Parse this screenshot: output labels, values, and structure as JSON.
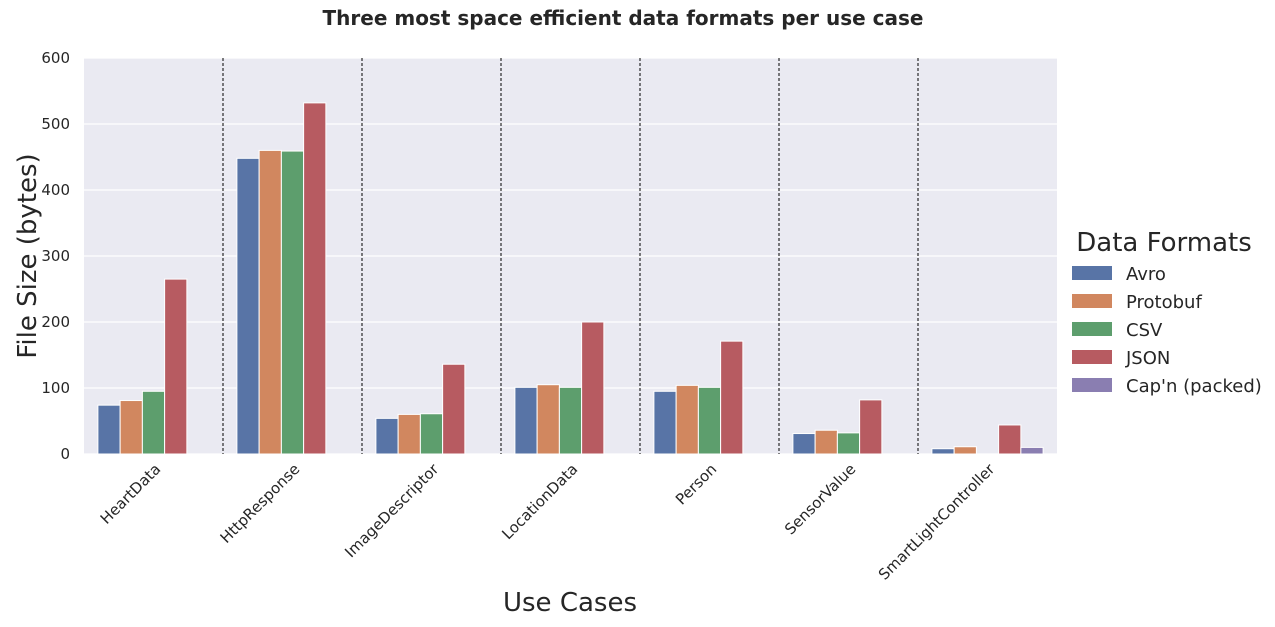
{
  "chart_data": {
    "type": "bar",
    "title": "Three most space efficient data formats per use case",
    "xlabel": "Use Cases",
    "ylabel": "File Size (bytes)",
    "ylim": [
      0,
      600
    ],
    "yticks": [
      0,
      100,
      200,
      300,
      400,
      500,
      600
    ],
    "grid": true,
    "legend_title": "Data Formats",
    "legend_position": "right",
    "categories": [
      "HeartData",
      "HttpResponse",
      "ImageDescriptor",
      "LocationData",
      "Person",
      "SensorValue",
      "SmartLightController"
    ],
    "series": [
      {
        "name": "Avro",
        "color": "#5874a6",
        "values": [
          74,
          448,
          54,
          101,
          95,
          31,
          8
        ]
      },
      {
        "name": "Protobuf",
        "color": "#d1875f",
        "values": [
          81,
          460,
          60,
          105,
          104,
          36,
          11
        ]
      },
      {
        "name": "CSV",
        "color": "#5d9e6d",
        "values": [
          95,
          459,
          61,
          101,
          101,
          32,
          null
        ]
      },
      {
        "name": "JSON",
        "color": "#b75b61",
        "values": [
          265,
          532,
          136,
          200,
          171,
          82,
          44
        ]
      },
      {
        "name": "Cap'n (packed)",
        "color": "#8a7eb1",
        "values": [
          null,
          null,
          null,
          null,
          null,
          null,
          10
        ]
      }
    ]
  }
}
